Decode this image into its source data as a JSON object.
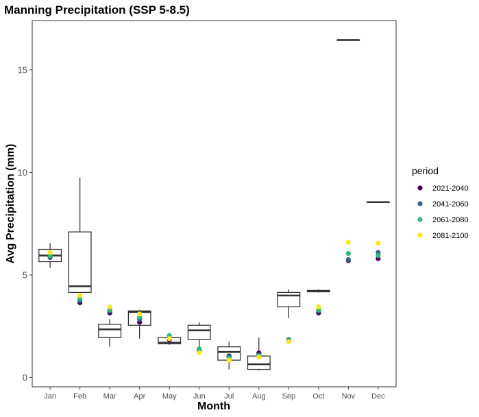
{
  "chart_data": {
    "type": "box+scatter",
    "title": "Manning Precipitation (SSP 5-8.5)",
    "xlabel": "Month",
    "ylabel": "Avg Precipitation (mm)",
    "categories": [
      "Jan",
      "Feb",
      "Mar",
      "Apr",
      "May",
      "Jun",
      "Jul",
      "Aug",
      "Sep",
      "Oct",
      "Nov",
      "Dec"
    ],
    "yticks": [
      0,
      5,
      10,
      15
    ],
    "ylim": [
      -0.45,
      17.4
    ],
    "grid": false,
    "legend": {
      "title": "period",
      "placement": "right"
    },
    "boxes": [
      {
        "category": "Jan",
        "min": 5.35,
        "q1": 5.65,
        "median": 5.95,
        "q3": 6.25,
        "max": 6.55
      },
      {
        "category": "Feb",
        "min": 4.15,
        "q1": 4.15,
        "median": 4.45,
        "q3": 7.1,
        "max": 9.75
      },
      {
        "category": "Mar",
        "min": 1.5,
        "q1": 1.95,
        "median": 2.35,
        "q3": 2.6,
        "max": 2.85
      },
      {
        "category": "Apr",
        "min": 1.9,
        "q1": 2.55,
        "median": 3.2,
        "q3": 3.25,
        "max": 3.3
      },
      {
        "category": "May",
        "min": 1.6,
        "q1": 1.65,
        "median": 1.7,
        "q3": 1.95,
        "max": 1.95
      },
      {
        "category": "Jun",
        "min": 1.5,
        "q1": 1.85,
        "median": 2.3,
        "q3": 2.55,
        "max": 2.7
      },
      {
        "category": "Jul",
        "min": 0.4,
        "q1": 0.85,
        "median": 1.25,
        "q3": 1.5,
        "max": 1.75
      },
      {
        "category": "Aug",
        "min": 0.35,
        "q1": 0.4,
        "median": 0.65,
        "q3": 1.05,
        "max": 1.95
      },
      {
        "category": "Sep",
        "min": 2.9,
        "q1": 3.45,
        "median": 4.0,
        "q3": 4.15,
        "max": 4.3
      },
      {
        "category": "Oct",
        "min": 4.15,
        "q1": 4.18,
        "median": 4.22,
        "q3": 4.25,
        "max": 4.3
      },
      {
        "category": "Nov",
        "min": 16.45,
        "q1": 16.45,
        "median": 16.45,
        "q3": 16.45,
        "max": 16.45
      },
      {
        "category": "Dec",
        "min": 8.55,
        "q1": 8.55,
        "median": 8.55,
        "q3": 8.55,
        "max": 8.55
      }
    ],
    "series": [
      {
        "name": "2021-2040",
        "color": "#440154",
        "values": [
          5.9,
          3.65,
          3.15,
          2.7,
          1.85,
          1.35,
          1.05,
          1.2,
          1.8,
          3.15,
          5.7,
          5.8
        ]
      },
      {
        "name": "2041-2060",
        "color": "#31688e",
        "values": [
          5.85,
          3.75,
          3.25,
          2.85,
          1.95,
          1.3,
          1.0,
          1.1,
          1.85,
          3.25,
          5.75,
          6.1
        ]
      },
      {
        "name": "2061-2080",
        "color": "#35b779",
        "values": [
          5.95,
          3.85,
          3.3,
          2.95,
          2.05,
          1.4,
          0.95,
          1.05,
          1.8,
          3.3,
          6.05,
          5.95
        ]
      },
      {
        "name": "2081-2100",
        "color": "#fde725",
        "values": [
          6.1,
          4.0,
          3.45,
          3.1,
          1.9,
          1.2,
          0.85,
          1.0,
          1.75,
          3.45,
          6.6,
          6.55
        ]
      }
    ]
  }
}
